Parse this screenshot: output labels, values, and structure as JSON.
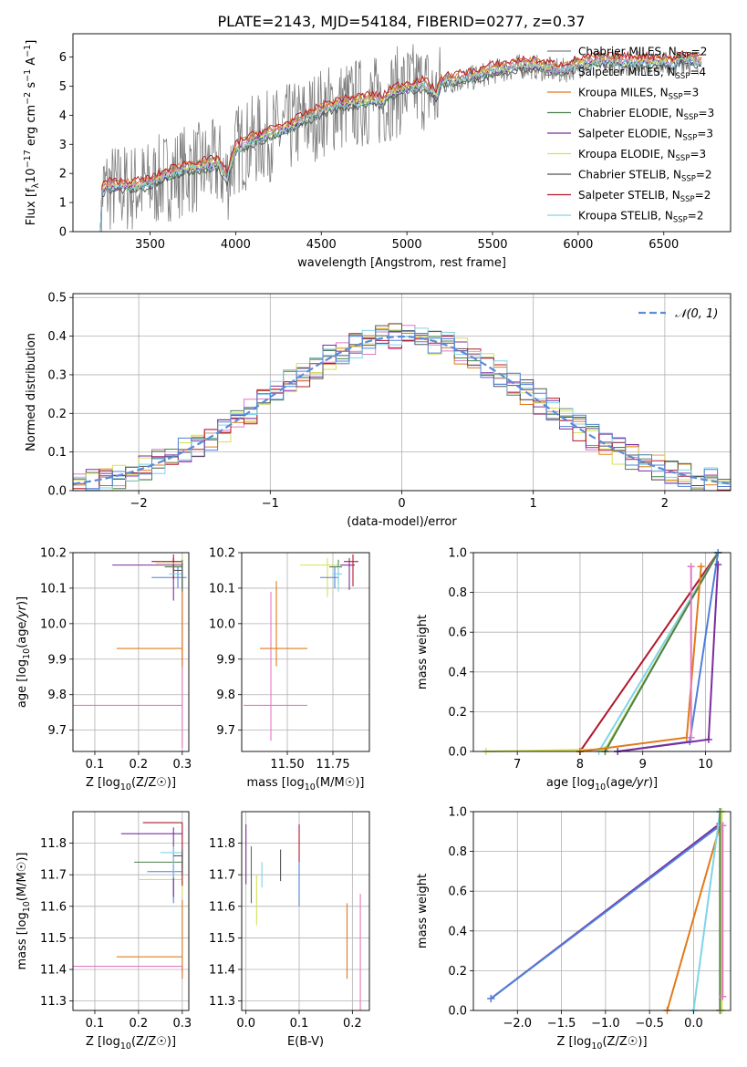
{
  "figure_title": "PLATE=2143, MJD=54184, FIBERID=0277, z=0.37",
  "colors": {
    "chabrier_miles": "#808080",
    "salpeter_miles": "#e377c2",
    "kroupa_miles": "#e07b1a",
    "chabrier_elodie": "#4b7f4b",
    "salpeter_elodie": "#7b2d9e",
    "kroupa_elodie": "#d4e157",
    "chabrier_stelib": "#555555",
    "salpeter_stelib": "#b2182b",
    "kroupa_stelib": "#7fd4e8",
    "blue": "#4f80d9",
    "data": "#7f7f7f"
  },
  "chart_data": [
    {
      "type": "line",
      "panel": "spectrum",
      "xlabel": "wavelength [Angstrom, rest frame]",
      "ylabel": "Flux [f_λ10^-17 erg cm^-2 s^-1 A^-1]",
      "xlim": [
        3050,
        6890
      ],
      "ylim": [
        0,
        6.8
      ],
      "xticks": [
        3500,
        4000,
        4500,
        5000,
        5500,
        6000,
        6500
      ],
      "yticks": [
        0,
        1,
        2,
        3,
        4,
        5,
        6
      ],
      "grid": false,
      "legend_position": "top-right",
      "legend": [
        {
          "key": "chabrier_miles",
          "label": "Chabrier MILES, N",
          "sub": "SSP",
          "tail": "=2"
        },
        {
          "key": "salpeter_miles",
          "label": "Salpeter MILES, N",
          "sub": "SSP",
          "tail": "=4"
        },
        {
          "key": "kroupa_miles",
          "label": "Kroupa MILES, N",
          "sub": "SSP",
          "tail": "=3"
        },
        {
          "key": "chabrier_elodie",
          "label": "Chabrier ELODIE, N",
          "sub": "SSP",
          "tail": "=3"
        },
        {
          "key": "salpeter_elodie",
          "label": "Salpeter ELODIE, N",
          "sub": "SSP",
          "tail": "=3"
        },
        {
          "key": "kroupa_elodie",
          "label": "Kroupa ELODIE, N",
          "sub": "SSP",
          "tail": "=3"
        },
        {
          "key": "chabrier_stelib",
          "label": "Chabrier STELIB, N",
          "sub": "SSP",
          "tail": "=2"
        },
        {
          "key": "salpeter_stelib",
          "label": "Salpeter STELIB, N",
          "sub": "SSP",
          "tail": "=2"
        },
        {
          "key": "kroupa_stelib",
          "label": "Kroupa STELIB, N",
          "sub": "SSP",
          "tail": "=2"
        }
      ],
      "model_shape": {
        "x": [
          3200,
          3250,
          3300,
          3400,
          3500,
          3600,
          3700,
          3800,
          3900,
          3950,
          4000,
          4100,
          4200,
          4300,
          4400,
          4500,
          4600,
          4700,
          4800,
          4860,
          4900,
          5000,
          5100,
          5175,
          5200,
          5300,
          5400,
          5500,
          5600,
          5700,
          5800,
          5900,
          6000,
          6100,
          6200,
          6300,
          6400,
          6500,
          6560,
          6600,
          6700
        ],
        "y": [
          1.3,
          1.5,
          1.5,
          1.5,
          1.6,
          1.9,
          2.1,
          2.2,
          2.3,
          1.8,
          2.8,
          3.1,
          3.3,
          3.5,
          3.8,
          4.1,
          4.3,
          4.4,
          4.5,
          4.4,
          4.7,
          4.9,
          5.0,
          4.6,
          5.1,
          5.2,
          5.3,
          5.5,
          5.6,
          5.7,
          5.6,
          5.5,
          5.7,
          5.8,
          5.8,
          5.8,
          5.8,
          5.8,
          5.7,
          5.9,
          5.8
        ]
      },
      "model_offsets": [
        0.15,
        0.1,
        0.2,
        -0.05,
        0.0,
        0.05,
        -0.1,
        0.25,
        0.0
      ],
      "observed": {
        "x_start": 3200,
        "x_end": 6700,
        "noise_level": "high below 5200 A",
        "y_range": [
          0,
          6.8
        ]
      }
    },
    {
      "type": "histogram",
      "panel": "residuals",
      "xlabel": "(data-model)/error",
      "ylabel": "Normed distribution",
      "xlim": [
        -2.5,
        2.5
      ],
      "ylim": [
        0,
        0.51
      ],
      "xticks": [
        -2,
        -1,
        0,
        1,
        2
      ],
      "yticks": [
        0.0,
        0.1,
        0.2,
        0.3,
        0.4,
        0.5
      ],
      "grid": true,
      "legend_position": "top-right",
      "legend_label": "N(0,1)",
      "bin_width": 0.1,
      "bin_start": -2.5,
      "reference_curve": "standard normal pdf"
    },
    {
      "type": "scatter",
      "panel": "age_vs_Z",
      "xlabel": "Z [log10(Z/Z☉)]",
      "ylabel": "age  [log10(age/yr)]",
      "xlim": [
        0.05,
        0.315
      ],
      "ylim": [
        9.64,
        10.2
      ],
      "xticks": [
        0.1,
        0.2,
        0.3
      ],
      "yticks": [
        9.7,
        9.8,
        9.9,
        10.0,
        10.1,
        10.2
      ],
      "grid": true,
      "points": [
        {
          "key": "salpeter_miles",
          "x": 0.3,
          "xerr": [
            0.25,
            0.0
          ],
          "y": 9.77,
          "yerr": [
            0.12,
            0.4
          ]
        },
        {
          "key": "kroupa_miles",
          "x": 0.3,
          "xerr": [
            0.15,
            0.0
          ],
          "y": 9.93,
          "yerr": [
            0.05,
            0.18
          ]
        },
        {
          "key": "blue",
          "x": 0.29,
          "xerr": [
            0.06,
            0.02
          ],
          "y": 10.13,
          "yerr": [
            0.03,
            0.03
          ]
        },
        {
          "key": "salpeter_elodie",
          "x": 0.28,
          "xerr": [
            0.14,
            0.02
          ],
          "y": 10.165,
          "yerr": [
            0.1,
            0.02
          ]
        },
        {
          "key": "salpeter_stelib",
          "x": 0.28,
          "xerr": [
            0.05,
            0.02
          ],
          "y": 10.175,
          "yerr": [
            0.05,
            0.02
          ]
        },
        {
          "key": "kroupa_elodie",
          "x": 0.3,
          "xerr": [
            0.06,
            0.0
          ],
          "y": 10.17,
          "yerr": [
            0.05,
            0.02
          ]
        },
        {
          "key": "chabrier_elodie",
          "x": 0.3,
          "xerr": [
            0.04,
            0.0
          ],
          "y": 10.16,
          "yerr": [
            0.07,
            0.02
          ]
        },
        {
          "key": "kroupa_stelib",
          "x": 0.3,
          "xerr": [
            0.03,
            0.0
          ],
          "y": 10.14,
          "yerr": [
            0.04,
            0.02
          ]
        },
        {
          "key": "chabrier_stelib",
          "x": 0.3,
          "xerr": [
            0.02,
            0.0
          ],
          "y": 10.15,
          "yerr": [
            0.05,
            0.02
          ]
        }
      ]
    },
    {
      "type": "scatter",
      "panel": "age_vs_mass",
      "xlabel": "mass [log10(M/M☉)]",
      "ylabel": "",
      "xlim": [
        11.25,
        11.95
      ],
      "ylim": [
        9.64,
        10.2
      ],
      "xticks": [
        11.5,
        11.75
      ],
      "yticks": [
        9.7,
        9.8,
        9.9,
        10.0,
        10.1,
        10.2
      ],
      "grid": true,
      "points": [
        {
          "key": "salpeter_miles",
          "x": 11.41,
          "xerr": [
            0.15,
            0.2
          ],
          "y": 9.77,
          "yerr": [
            0.1,
            0.32
          ]
        },
        {
          "key": "kroupa_miles",
          "x": 11.44,
          "xerr": [
            0.09,
            0.17
          ],
          "y": 9.93,
          "yerr": [
            0.05,
            0.19
          ]
        },
        {
          "key": "kroupa_elodie",
          "x": 11.72,
          "xerr": [
            0.15,
            0.06
          ],
          "y": 10.165,
          "yerr": [
            0.09,
            0.02
          ]
        },
        {
          "key": "blue",
          "x": 11.76,
          "xerr": [
            0.08,
            0.02
          ],
          "y": 10.13,
          "yerr": [
            0.03,
            0.03
          ]
        },
        {
          "key": "chabrier_elodie",
          "x": 11.78,
          "xerr": [
            0.05,
            0.02
          ],
          "y": 10.16,
          "yerr": [
            0.05,
            0.02
          ]
        },
        {
          "key": "salpeter_elodie",
          "x": 11.84,
          "xerr": [
            0.05,
            0.03
          ],
          "y": 10.165,
          "yerr": [
            0.07,
            0.02
          ]
        },
        {
          "key": "salpeter_stelib",
          "x": 11.86,
          "xerr": [
            0.05,
            0.03
          ],
          "y": 10.175,
          "yerr": [
            0.07,
            0.02
          ]
        },
        {
          "key": "kroupa_stelib",
          "x": 11.78,
          "xerr": [
            0.03,
            0.02
          ],
          "y": 10.14,
          "yerr": [
            0.05,
            0.02
          ]
        }
      ]
    },
    {
      "type": "line",
      "panel": "massweight_vs_age",
      "xlabel": "age  [log10(age/yr)]",
      "ylabel": "mass weight",
      "xlim": [
        6.3,
        10.4
      ],
      "ylim": [
        0,
        1.0
      ],
      "xticks": [
        7,
        8,
        9,
        10
      ],
      "yticks": [
        0.0,
        0.2,
        0.4,
        0.6,
        0.8,
        1.0
      ],
      "grid": true,
      "series": [
        {
          "key": "salpeter_stelib",
          "x": [
            8.0,
            10.2
          ],
          "y": [
            0.0,
            1.0
          ]
        },
        {
          "key": "kroupa_stelib",
          "x": [
            8.3,
            10.2
          ],
          "y": [
            0.0,
            1.0
          ]
        },
        {
          "key": "kroupa_elodie",
          "x": [
            6.5,
            8.4,
            10.2
          ],
          "y": [
            0.0,
            0.01,
            1.0
          ]
        },
        {
          "key": "chabrier_elodie",
          "x": [
            8.4,
            10.2
          ],
          "y": [
            0.0,
            1.0
          ]
        },
        {
          "key": "blue",
          "x": [
            8.6,
            9.75,
            10.2
          ],
          "y": [
            0.0,
            0.05,
            1.0
          ]
        },
        {
          "key": "kroupa_miles",
          "x": [
            8.0,
            9.7,
            9.93
          ],
          "y": [
            0.0,
            0.07,
            0.93
          ]
        },
        {
          "key": "salpeter_elodie",
          "x": [
            8.6,
            10.05,
            10.2
          ],
          "y": [
            0.0,
            0.06,
            0.94
          ]
        },
        {
          "key": "salpeter_miles",
          "x": [
            9.77,
            9.77
          ],
          "y": [
            0.07,
            0.93
          ]
        }
      ]
    },
    {
      "type": "scatter",
      "panel": "mass_vs_Z",
      "xlabel": "Z [log10(Z/Z☉)]",
      "ylabel": "mass [log10(M/M☉)]",
      "xlim": [
        0.05,
        0.315
      ],
      "ylim": [
        11.27,
        11.9
      ],
      "xticks": [
        0.1,
        0.2,
        0.3
      ],
      "yticks": [
        11.3,
        11.4,
        11.5,
        11.6,
        11.7,
        11.8
      ],
      "grid": true,
      "points": [
        {
          "key": "salpeter_miles",
          "x": 0.3,
          "xerr": [
            0.25,
            0.0
          ],
          "y": 11.41,
          "yerr": [
            0.02,
            0.0
          ]
        },
        {
          "key": "kroupa_miles",
          "x": 0.3,
          "xerr": [
            0.15,
            0.0
          ],
          "y": 11.44,
          "yerr": [
            0.07,
            0.18
          ]
        },
        {
          "key": "kroupa_elodie",
          "x": 0.3,
          "xerr": [
            0.1,
            0.0
          ],
          "y": 11.685,
          "yerr": [
            0.05,
            0.05
          ]
        },
        {
          "key": "blue",
          "x": 0.28,
          "xerr": [
            0.06,
            0.02
          ],
          "y": 11.71,
          "yerr": [
            0.1,
            0.02
          ]
        },
        {
          "key": "chabrier_elodie",
          "x": 0.3,
          "xerr": [
            0.11,
            0.0
          ],
          "y": 11.74,
          "yerr": [
            0.02,
            0.03
          ]
        },
        {
          "key": "salpeter_elodie",
          "x": 0.28,
          "xerr": [
            0.12,
            0.02
          ],
          "y": 11.83,
          "yerr": [
            0.2,
            0.02
          ]
        },
        {
          "key": "salpeter_stelib",
          "x": 0.3,
          "xerr": [
            0.09,
            0.0
          ],
          "y": 11.865,
          "yerr": [
            0.2,
            0.0
          ]
        },
        {
          "key": "kroupa_stelib",
          "x": 0.28,
          "xerr": [
            0.03,
            0.02
          ],
          "y": 11.77,
          "yerr": [
            0.08,
            0.02
          ]
        },
        {
          "key": "chabrier_stelib",
          "x": 0.3,
          "xerr": [
            0.02,
            0.0
          ],
          "y": 11.76,
          "yerr": [
            0.06,
            0.02
          ]
        }
      ]
    },
    {
      "type": "scatter",
      "panel": "mass_vs_EBV",
      "xlabel": "E(B-V)",
      "ylabel": "",
      "xlim": [
        -0.008,
        0.232
      ],
      "ylim": [
        11.27,
        11.9
      ],
      "xticks": [
        0.0,
        0.1,
        0.2
      ],
      "yticks": [
        11.3,
        11.4,
        11.5,
        11.6,
        11.7,
        11.8
      ],
      "grid": true,
      "points": [
        {
          "key": "salpeter_elodie",
          "x": 0.0,
          "y": 11.77,
          "yerr": [
            0.1,
            0.09
          ]
        },
        {
          "key": "chabrier_elodie",
          "x": 0.01,
          "y": 11.7,
          "yerr": [
            0.09,
            0.09
          ]
        },
        {
          "key": "kroupa_elodie",
          "x": 0.02,
          "y": 11.64,
          "yerr": [
            0.1,
            0.06
          ]
        },
        {
          "key": "kroupa_stelib",
          "x": 0.03,
          "y": 11.7,
          "yerr": [
            0.04,
            0.04
          ]
        },
        {
          "key": "chabrier_stelib",
          "x": 0.065,
          "y": 11.73,
          "yerr": [
            0.05,
            0.05
          ]
        },
        {
          "key": "salpeter_stelib",
          "x": 0.1,
          "y": 11.8,
          "yerr": [
            0.06,
            0.06
          ]
        },
        {
          "key": "blue",
          "x": 0.1,
          "y": 11.69,
          "yerr": [
            0.09,
            0.05
          ]
        },
        {
          "key": "kroupa_miles",
          "x": 0.19,
          "y": 11.49,
          "yerr": [
            0.12,
            0.12
          ]
        },
        {
          "key": "salpeter_miles",
          "x": 0.215,
          "y": 11.45,
          "yerr": [
            0.18,
            0.19
          ]
        }
      ]
    },
    {
      "type": "line",
      "panel": "massweight_vs_Z",
      "xlabel": "Z [log10(Z/Z☉)]",
      "ylabel": "mass weight",
      "xlim": [
        -2.5,
        0.42
      ],
      "ylim": [
        0,
        1.0
      ],
      "xticks": [
        -2.0,
        -1.5,
        -1.0,
        -0.5,
        0.0
      ],
      "yticks": [
        0.0,
        0.2,
        0.4,
        0.6,
        0.8,
        1.0
      ],
      "grid": true,
      "series": [
        {
          "key": "salpeter_elodie",
          "x": [
            -2.3,
            0.3
          ],
          "y": [
            0.06,
            0.94
          ]
        },
        {
          "key": "blue",
          "x": [
            -2.3,
            0.3
          ],
          "y": [
            0.06,
            0.93
          ]
        },
        {
          "key": "kroupa_miles",
          "x": [
            -0.3,
            0.3
          ],
          "y": [
            0.0,
            0.93
          ]
        },
        {
          "key": "kroupa_stelib",
          "x": [
            0.0,
            0.3
          ],
          "y": [
            0.0,
            1.0
          ]
        },
        {
          "key": "chabrier_elodie",
          "x": [
            0.3,
            0.3
          ],
          "y": [
            0.0,
            1.0
          ]
        },
        {
          "key": "kroupa_elodie",
          "x": [
            0.32,
            0.32
          ],
          "y": [
            0.0,
            1.0
          ]
        },
        {
          "key": "salpeter_miles",
          "x": [
            0.33,
            0.33
          ],
          "y": [
            0.07,
            0.93
          ]
        }
      ]
    }
  ]
}
